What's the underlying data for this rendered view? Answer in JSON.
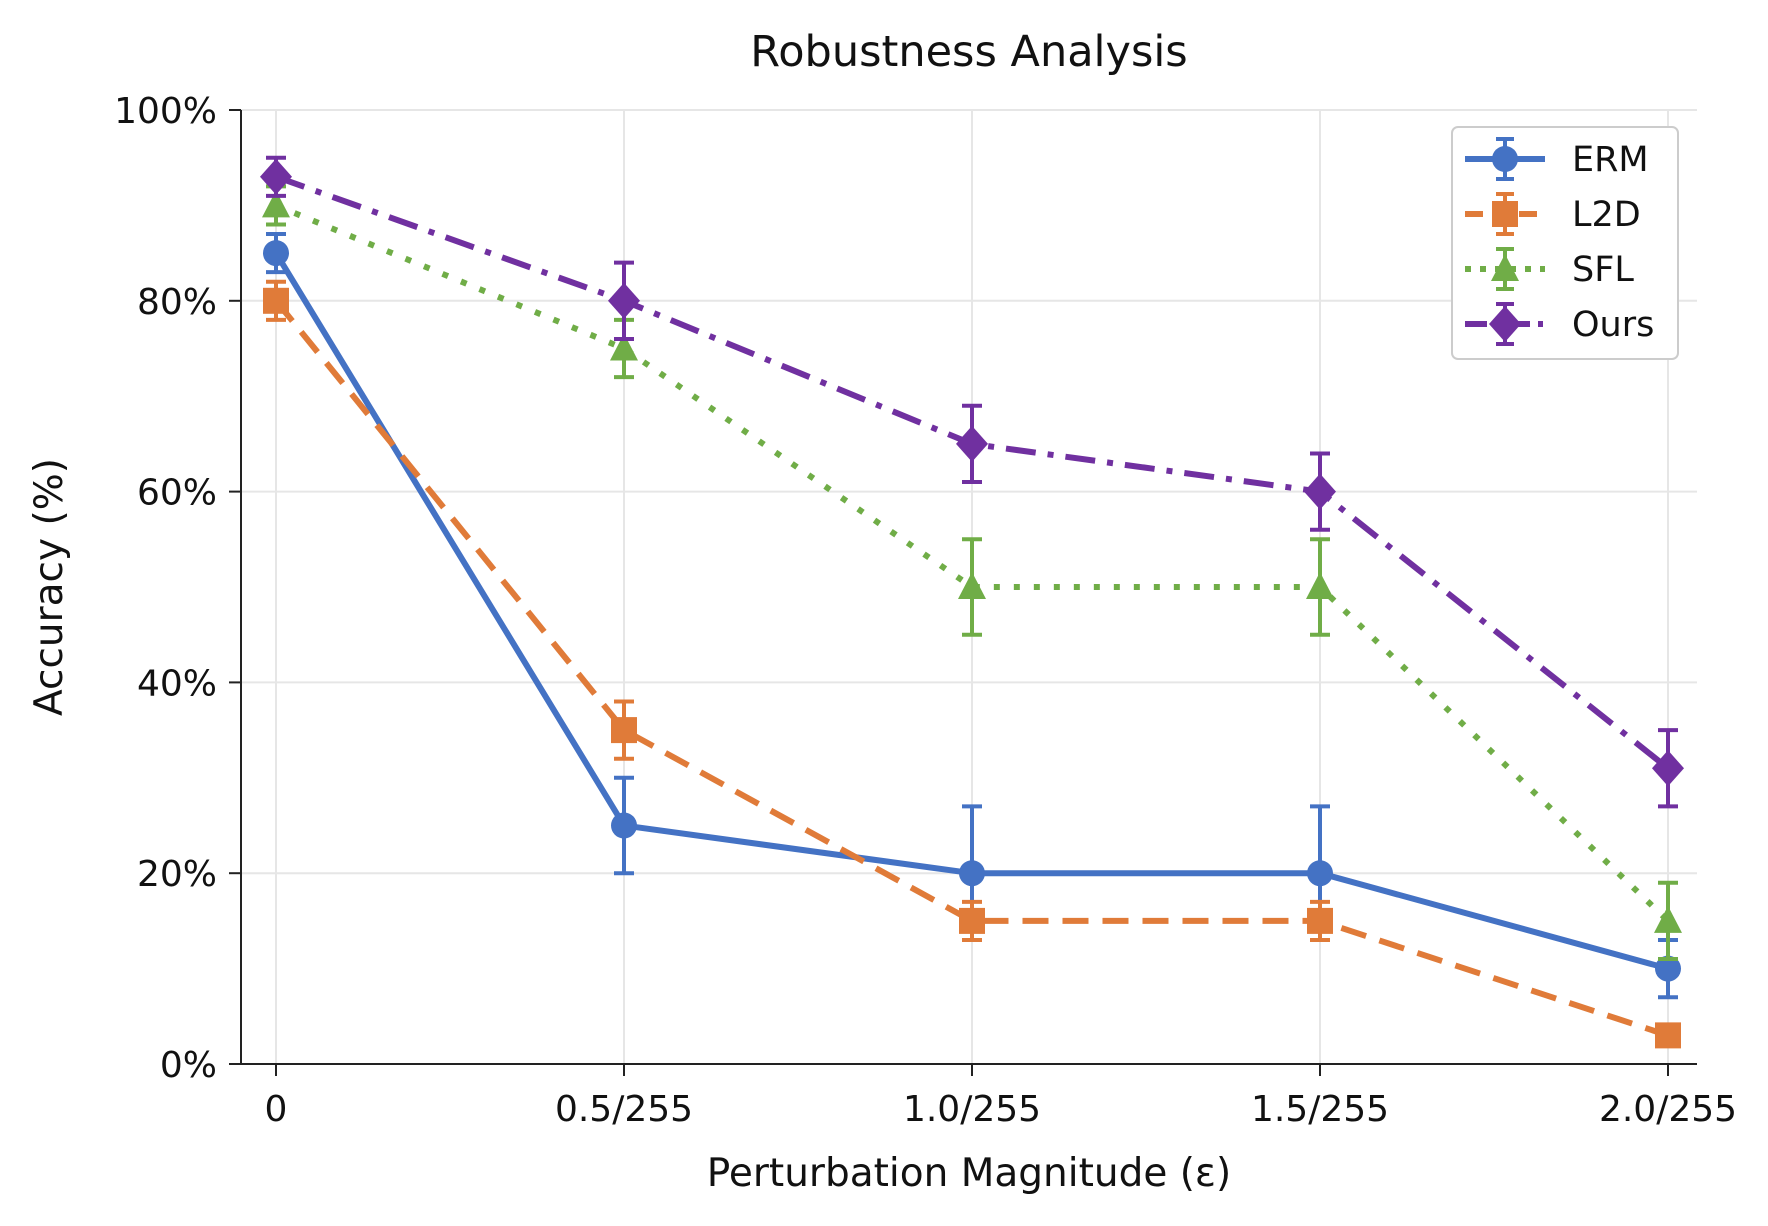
{
  "chart_data": {
    "type": "line",
    "title": "Robustness Analysis",
    "xlabel": "Perturbation Magnitude (ε)",
    "ylabel": "Accuracy (%)",
    "categories": [
      "0",
      "0.5/255",
      "1.0/255",
      "1.5/255",
      "2.0/255"
    ],
    "ylim": [
      0,
      100
    ],
    "yticks": [
      0,
      20,
      40,
      60,
      80,
      100
    ],
    "ytick_labels": [
      "0%",
      "20%",
      "40%",
      "60%",
      "80%",
      "100%"
    ],
    "grid": true,
    "legend_position": "top-right",
    "series": [
      {
        "name": "ERM",
        "color": "#4472c4",
        "marker": "circle",
        "linestyle": "solid",
        "values": [
          85,
          25,
          20,
          20,
          10
        ],
        "errors": [
          2,
          5,
          7,
          7,
          3
        ]
      },
      {
        "name": "L2D",
        "color": "#e07b39",
        "marker": "square",
        "linestyle": "dashed",
        "values": [
          80,
          35,
          15,
          15,
          3
        ],
        "errors": [
          2,
          3,
          2,
          2,
          1
        ]
      },
      {
        "name": "SFL",
        "color": "#70ad47",
        "marker": "triangle",
        "linestyle": "dotted",
        "values": [
          90,
          75,
          50,
          50,
          15
        ],
        "errors": [
          2,
          3,
          5,
          5,
          4
        ]
      },
      {
        "name": "Ours",
        "color": "#7030a0",
        "marker": "diamond",
        "linestyle": "dashdot",
        "values": [
          93,
          80,
          65,
          60,
          31
        ],
        "errors": [
          2,
          4,
          4,
          4,
          4
        ]
      }
    ]
  }
}
